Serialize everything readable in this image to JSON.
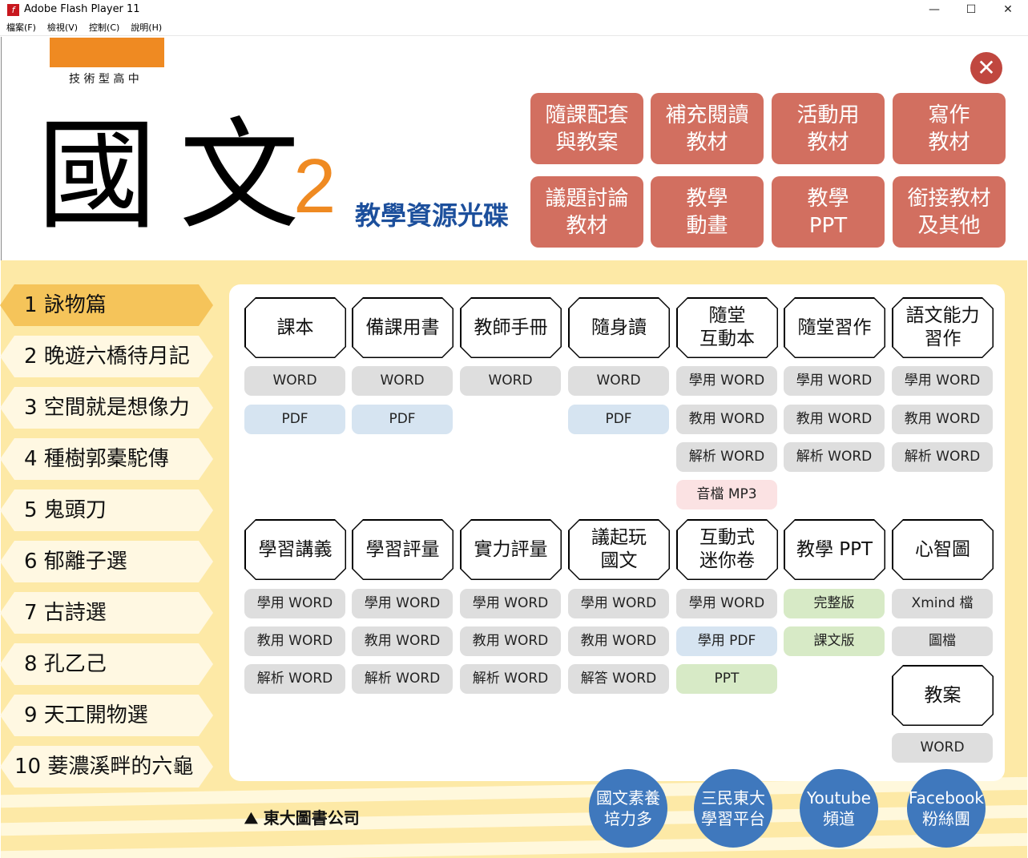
{
  "window": {
    "title": "Adobe Flash Player 11",
    "minimize": "—",
    "maximize": "☐",
    "close": "✕"
  },
  "menu": [
    "檔案(F)",
    "檢視(V)",
    "控制(C)",
    "說明(H)"
  ],
  "header": {
    "school_type": "技 術 型 高 中",
    "title": "國 文",
    "volume": "2",
    "subtitle": "教學資源光碟",
    "brand_color": "#ef8a22"
  },
  "top_buttons": [
    [
      "隨課配套",
      "與教案"
    ],
    [
      "補充閱讀",
      "教材"
    ],
    [
      "活動用",
      "教材"
    ],
    [
      "寫作",
      "教材"
    ],
    [
      "議題討論",
      "教材"
    ],
    [
      "教學",
      "動畫"
    ],
    [
      "教學",
      "PPT"
    ],
    [
      "銜接教材",
      "及其他"
    ]
  ],
  "lessons": [
    "1 詠物篇",
    "2 晚遊六橋待月記",
    "3 空間就是想像力",
    "4 種樹郭橐駝傳",
    "5 鬼頭刀",
    "6 郁離子選",
    "7 古詩選",
    "8 孔乙己",
    "9 天工開物選",
    "10 菨濃溪畔的六龜"
  ],
  "active_lesson": 0,
  "section1": [
    {
      "title": "課本",
      "items": [
        [
          "WORD",
          "gray"
        ],
        [
          "PDF",
          "blue"
        ]
      ]
    },
    {
      "title": "備課用書",
      "items": [
        [
          "WORD",
          "gray"
        ],
        [
          "PDF",
          "blue"
        ]
      ]
    },
    {
      "title": "教師手冊",
      "items": [
        [
          "WORD",
          "gray"
        ]
      ]
    },
    {
      "title": "隨身讀",
      "items": [
        [
          "WORD",
          "gray"
        ],
        [
          "PDF",
          "blue"
        ]
      ]
    },
    {
      "title": "隨堂\n互動本",
      "items": [
        [
          "學用 WORD",
          "gray"
        ],
        [
          "教用 WORD",
          "gray"
        ],
        [
          "解析 WORD",
          "gray"
        ],
        [
          "音檔 MP3",
          "pink"
        ]
      ]
    },
    {
      "title": "隨堂習作",
      "items": [
        [
          "學用 WORD",
          "gray"
        ],
        [
          "教用 WORD",
          "gray"
        ],
        [
          "解析 WORD",
          "gray"
        ]
      ]
    },
    {
      "title": "語文能力\n習作",
      "items": [
        [
          "學用 WORD",
          "gray"
        ],
        [
          "教用 WORD",
          "gray"
        ],
        [
          "解析 WORD",
          "gray"
        ]
      ]
    }
  ],
  "section2": [
    {
      "title": "學習講義",
      "items": [
        [
          "學用 WORD",
          "gray"
        ],
        [
          "教用 WORD",
          "gray"
        ],
        [
          "解析 WORD",
          "gray"
        ]
      ]
    },
    {
      "title": "學習評量",
      "items": [
        [
          "學用 WORD",
          "gray"
        ],
        [
          "教用 WORD",
          "gray"
        ],
        [
          "解析 WORD",
          "gray"
        ]
      ]
    },
    {
      "title": "實力評量",
      "items": [
        [
          "學用 WORD",
          "gray"
        ],
        [
          "教用 WORD",
          "gray"
        ],
        [
          "解析 WORD",
          "gray"
        ]
      ]
    },
    {
      "title": "議起玩\n國文",
      "items": [
        [
          "學用 WORD",
          "gray"
        ],
        [
          "教用 WORD",
          "gray"
        ],
        [
          "解答 WORD",
          "gray"
        ]
      ]
    },
    {
      "title": "互動式\n迷你卷",
      "items": [
        [
          "學用 WORD",
          "gray"
        ],
        [
          "學用 PDF",
          "blue"
        ],
        [
          "PPT",
          "green"
        ]
      ]
    },
    {
      "title": "教學 PPT",
      "items": [
        [
          "完整版",
          "green"
        ],
        [
          "課文版",
          "green"
        ]
      ]
    },
    {
      "title": "心智圖",
      "items": [
        [
          "Xmind 檔",
          "gray"
        ],
        [
          "圖檔",
          "gray"
        ]
      ]
    }
  ],
  "lesson_plan": {
    "title": "教案",
    "items": [
      [
        "WORD",
        "gray"
      ]
    ]
  },
  "footer": {
    "publisher": "東大圖書公司",
    "links": [
      [
        "國文素養",
        "培力多"
      ],
      [
        "三民東大",
        "學習平台"
      ],
      [
        "Youtube",
        "頻道"
      ],
      [
        "Facebook",
        "粉絲團"
      ]
    ]
  },
  "colors": {
    "top_button": "#d26f60",
    "link_circle": "#3f78bd",
    "active_lesson": "#f5c45a",
    "background": "#fde9a6"
  }
}
